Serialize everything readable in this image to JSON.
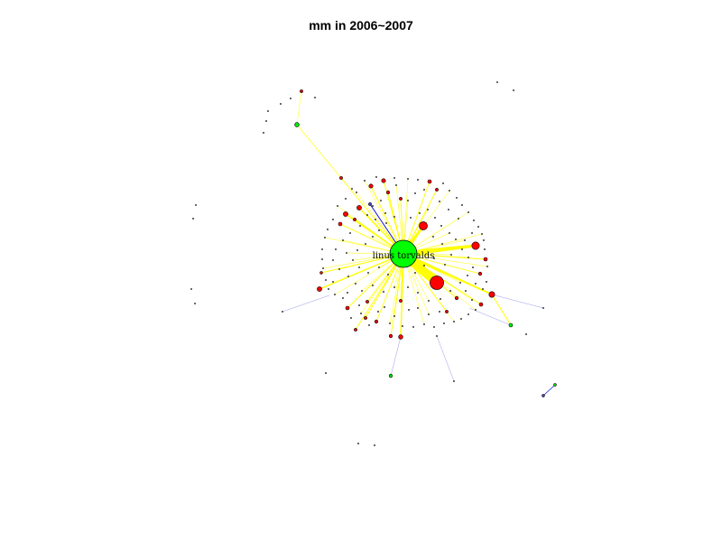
{
  "title": "mm in 2006~2007",
  "hub": {
    "label": "linus torvalds",
    "color": "#00ff00"
  },
  "colors": {
    "hub_edge": "#ffff00",
    "other_edge": "#9999ee",
    "blue_edge": "#0000cc",
    "red_node": "#ff0000",
    "green_node": "#00ee00",
    "blue_node": "#4444dd",
    "node_stroke": "#000000",
    "dot": "#000000"
  }
}
